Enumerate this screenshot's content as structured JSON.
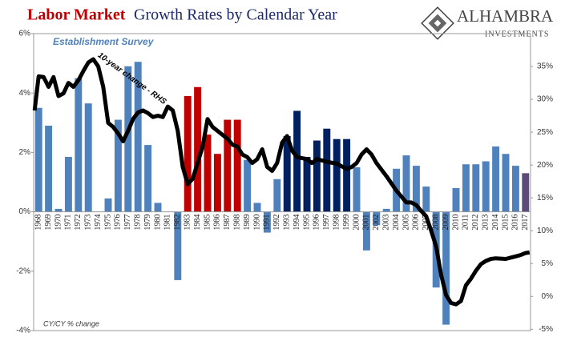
{
  "chart_data": {
    "type": "bar",
    "title_highlight": "Labor Market",
    "title_rest": "Growth Rates by Calendar Year",
    "annotations": [
      "Establishment Survey",
      "10-year change - RHS",
      "CY/CY % change"
    ],
    "logo": {
      "name": "ALHAMBRA",
      "tagline": "INVESTMENTS"
    },
    "categories": [
      "1968",
      "1969",
      "1970",
      "1971",
      "1972",
      "1973",
      "1974",
      "1975",
      "1976",
      "1977",
      "1978",
      "1979",
      "1980",
      "1981",
      "1982",
      "1983",
      "1984",
      "1985",
      "1986",
      "1987",
      "1988",
      "1989",
      "1990",
      "1991",
      "1992",
      "1993",
      "1994",
      "1995",
      "1996",
      "1997",
      "1998",
      "1999",
      "2000",
      "2001",
      "2002",
      "2003",
      "2004",
      "2005",
      "2006",
      "2007",
      "2008",
      "2009",
      "2010",
      "2011",
      "2012",
      "2013",
      "2014",
      "2015",
      "2016",
      "2017"
    ],
    "values": [
      3.5,
      2.9,
      0.1,
      1.85,
      4.5,
      3.65,
      0,
      0.45,
      3.1,
      4.9,
      5.05,
      2.25,
      0.3,
      0,
      -2.3,
      3.9,
      4.2,
      2.6,
      1.95,
      3.1,
      3.1,
      1.75,
      0.3,
      -0.7,
      1.1,
      2.55,
      3.4,
      1.85,
      2.4,
      2.8,
      2.45,
      2.45,
      1.5,
      -1.3,
      -0.45,
      0.1,
      1.45,
      1.9,
      1.55,
      0.85,
      -2.55,
      -3.8,
      0.8,
      1.6,
      1.6,
      1.7,
      2.2,
      1.95,
      1.55,
      1.3
    ],
    "colors": [
      "#4f81bd",
      "#4f81bd",
      "#4f81bd",
      "#4f81bd",
      "#4f81bd",
      "#4f81bd",
      "#4f81bd",
      "#4f81bd",
      "#4f81bd",
      "#4f81bd",
      "#4f81bd",
      "#4f81bd",
      "#4f81bd",
      "#4f81bd",
      "#4f81bd",
      "#c00000",
      "#c00000",
      "#c00000",
      "#c00000",
      "#c00000",
      "#c00000",
      "#4f81bd",
      "#4f81bd",
      "#4f81bd",
      "#4f81bd",
      "#002060",
      "#002060",
      "#002060",
      "#002060",
      "#002060",
      "#002060",
      "#002060",
      "#4f81bd",
      "#4f81bd",
      "#4f81bd",
      "#4f81bd",
      "#4f81bd",
      "#4f81bd",
      "#4f81bd",
      "#4f81bd",
      "#4f81bd",
      "#4f81bd",
      "#4f81bd",
      "#4f81bd",
      "#4f81bd",
      "#4f81bd",
      "#4f81bd",
      "#4f81bd",
      "#4f81bd",
      "#5b4a7a"
    ],
    "ylim": [
      -4,
      6
    ],
    "yticks": [
      {
        "value": 6,
        "label": "6%"
      },
      {
        "value": 4,
        "label": "4%"
      },
      {
        "value": 2,
        "label": "2%"
      },
      {
        "value": 0,
        "label": "0%"
      },
      {
        "value": -2,
        "label": "-2%"
      },
      {
        "value": -4,
        "label": "-4%"
      }
    ],
    "y2lim": [
      -5.2,
      40
    ],
    "y2ticks": [
      {
        "value": 35,
        "label": "35%"
      },
      {
        "value": 30,
        "label": "30%"
      },
      {
        "value": 25,
        "label": "25%"
      },
      {
        "value": 20,
        "label": "20%"
      },
      {
        "value": 15,
        "label": "15%"
      },
      {
        "value": 10,
        "label": "10%"
      },
      {
        "value": 5,
        "label": "5%"
      },
      {
        "value": 0,
        "label": "0%"
      },
      {
        "value": -5,
        "label": "-5%"
      }
    ],
    "xlim": [
      1967.5,
      2017.5
    ],
    "line": {
      "type": "line",
      "axis": "y2",
      "color": "#000000",
      "x": [
        1967.6,
        1968,
        1968.5,
        1969,
        1969.5,
        1970,
        1970.5,
        1971,
        1971.5,
        1972,
        1972.5,
        1973,
        1973.5,
        1974,
        1974.5,
        1975,
        1975.5,
        1976,
        1976.5,
        1977,
        1977.5,
        1978,
        1978.5,
        1979,
        1979.5,
        1980,
        1980.5,
        1981,
        1981.5,
        1982,
        1982.5,
        1983,
        1983.5,
        1984,
        1984.5,
        1985,
        1985.5,
        1986,
        1986.5,
        1987,
        1987.5,
        1988,
        1988.5,
        1989,
        1989.5,
        1990,
        1990.5,
        1991,
        1991.5,
        1992,
        1992.5,
        1993,
        1993.5,
        1994,
        1995,
        1995.5,
        1996,
        1997,
        1998,
        1999,
        1999.5,
        2000,
        2000.5,
        2001,
        2001.5,
        2002,
        2003,
        2004,
        2005,
        2005.5,
        2006,
        2006.5,
        2007,
        2007.5,
        2008,
        2008.5,
        2009,
        2009.5,
        2010,
        2010.5,
        2011,
        2011.5,
        2012,
        2012.5,
        2013,
        2013.5,
        2014,
        2015,
        2016,
        2016.5,
        2017,
        2017.4
      ],
      "values": [
        28.3,
        33.5,
        33.4,
        31.9,
        33.4,
        30.5,
        30.9,
        32.5,
        31.9,
        32.9,
        34.3,
        35.6,
        36.1,
        35.0,
        31.9,
        26.4,
        25.8,
        24.8,
        23.6,
        25.2,
        27.0,
        28.0,
        28.3,
        27.9,
        27.3,
        27.5,
        27.3,
        28.9,
        28.3,
        25.2,
        19.7,
        17.1,
        17.9,
        20.3,
        22.8,
        27.0,
        25.8,
        25.2,
        24.6,
        24.0,
        23.1,
        22.8,
        21.6,
        21.2,
        20.3,
        20.9,
        22.4,
        19.7,
        19.1,
        20.3,
        23.4,
        24.4,
        22.2,
        21.2,
        20.9,
        20.3,
        20.9,
        20.5,
        20.2,
        19.4,
        19.7,
        20.3,
        21.6,
        22.4,
        21.6,
        20.3,
        18.3,
        16.1,
        14.3,
        14.3,
        13.9,
        13.0,
        12.2,
        10.0,
        7.6,
        3.3,
        0.2,
        -1.0,
        -1.2,
        -0.7,
        1.7,
        2.7,
        3.9,
        4.9,
        5.4,
        5.7,
        5.8,
        5.7,
        6.1,
        6.3,
        6.6,
        6.7
      ]
    }
  }
}
